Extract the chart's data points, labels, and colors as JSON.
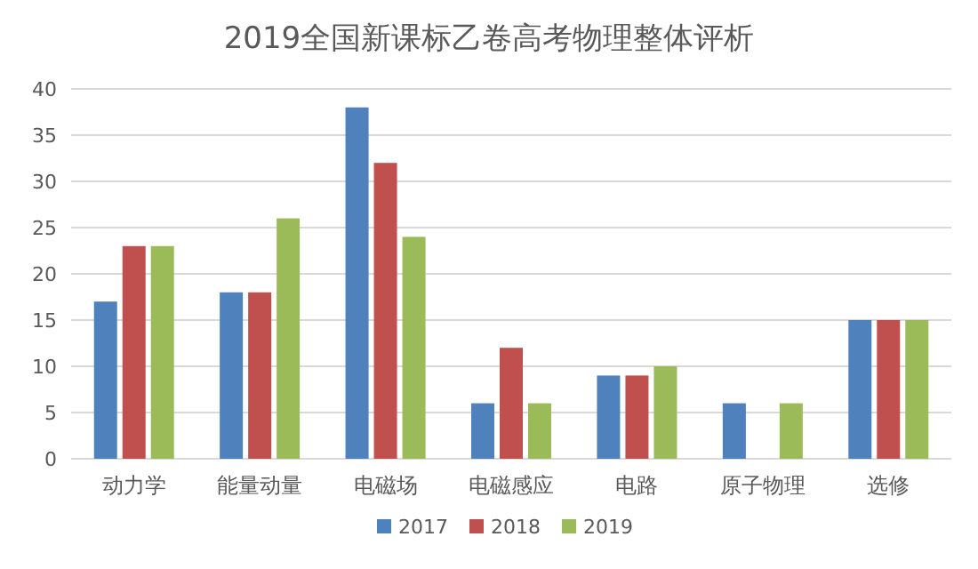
{
  "chart_data": {
    "type": "bar",
    "title": "2019全国新课标乙卷高考物理整体评析",
    "categories": [
      "动力学",
      "能量动量",
      "电磁场",
      "电磁感应",
      "电路",
      "原子物理",
      "选修"
    ],
    "series": [
      {
        "name": "2017",
        "color": "#4f81bd",
        "values": [
          17,
          18,
          38,
          6,
          9,
          6,
          15
        ]
      },
      {
        "name": "2018",
        "color": "#c0504d",
        "values": [
          23,
          18,
          32,
          12,
          9,
          0,
          15
        ]
      },
      {
        "name": "2019",
        "color": "#9bbb59",
        "values": [
          23,
          26,
          24,
          6,
          10,
          6,
          15
        ]
      }
    ],
    "ylim": [
      0,
      40
    ],
    "yticks": [
      0,
      5,
      10,
      15,
      20,
      25,
      30,
      35,
      40
    ],
    "grid": "y",
    "legend": "bottom"
  }
}
